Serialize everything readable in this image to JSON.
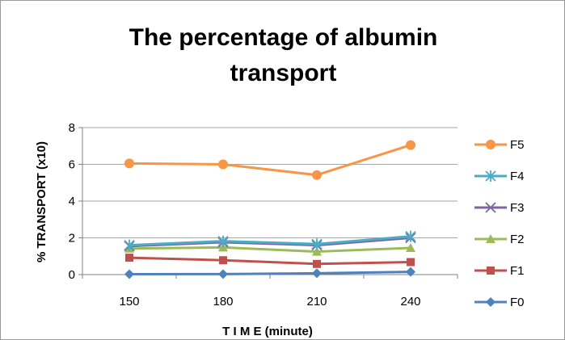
{
  "chart_data": {
    "type": "line",
    "title_lines": [
      "The percentage of albumin",
      "transport"
    ],
    "xlabel": "T I M E (minute)",
    "ylabel": "% TRANSPORT (x10)",
    "categories": [
      "150",
      "180",
      "210",
      "240"
    ],
    "ylim": [
      0,
      8
    ],
    "yticks": [
      0,
      2,
      4,
      6,
      8
    ],
    "grid": "horizontal",
    "legend_position": "right",
    "series": [
      {
        "name": "F5",
        "color": "#F79646",
        "marker": "circle",
        "values": [
          6.05,
          6.0,
          5.42,
          7.05
        ]
      },
      {
        "name": "F4",
        "color": "#4BACC6",
        "marker": "asterisk",
        "values": [
          1.6,
          1.82,
          1.66,
          2.08
        ]
      },
      {
        "name": "F3",
        "color": "#8064A2",
        "marker": "x",
        "values": [
          1.55,
          1.76,
          1.6,
          2.0
        ]
      },
      {
        "name": "F2",
        "color": "#9BBB59",
        "marker": "triangle",
        "values": [
          1.42,
          1.48,
          1.25,
          1.45
        ]
      },
      {
        "name": "F1",
        "color": "#C0504D",
        "marker": "square",
        "values": [
          0.92,
          0.78,
          0.58,
          0.68
        ]
      },
      {
        "name": "F0",
        "color": "#4F81BD",
        "marker": "diamond",
        "values": [
          0.02,
          0.03,
          0.07,
          0.15
        ]
      }
    ]
  }
}
